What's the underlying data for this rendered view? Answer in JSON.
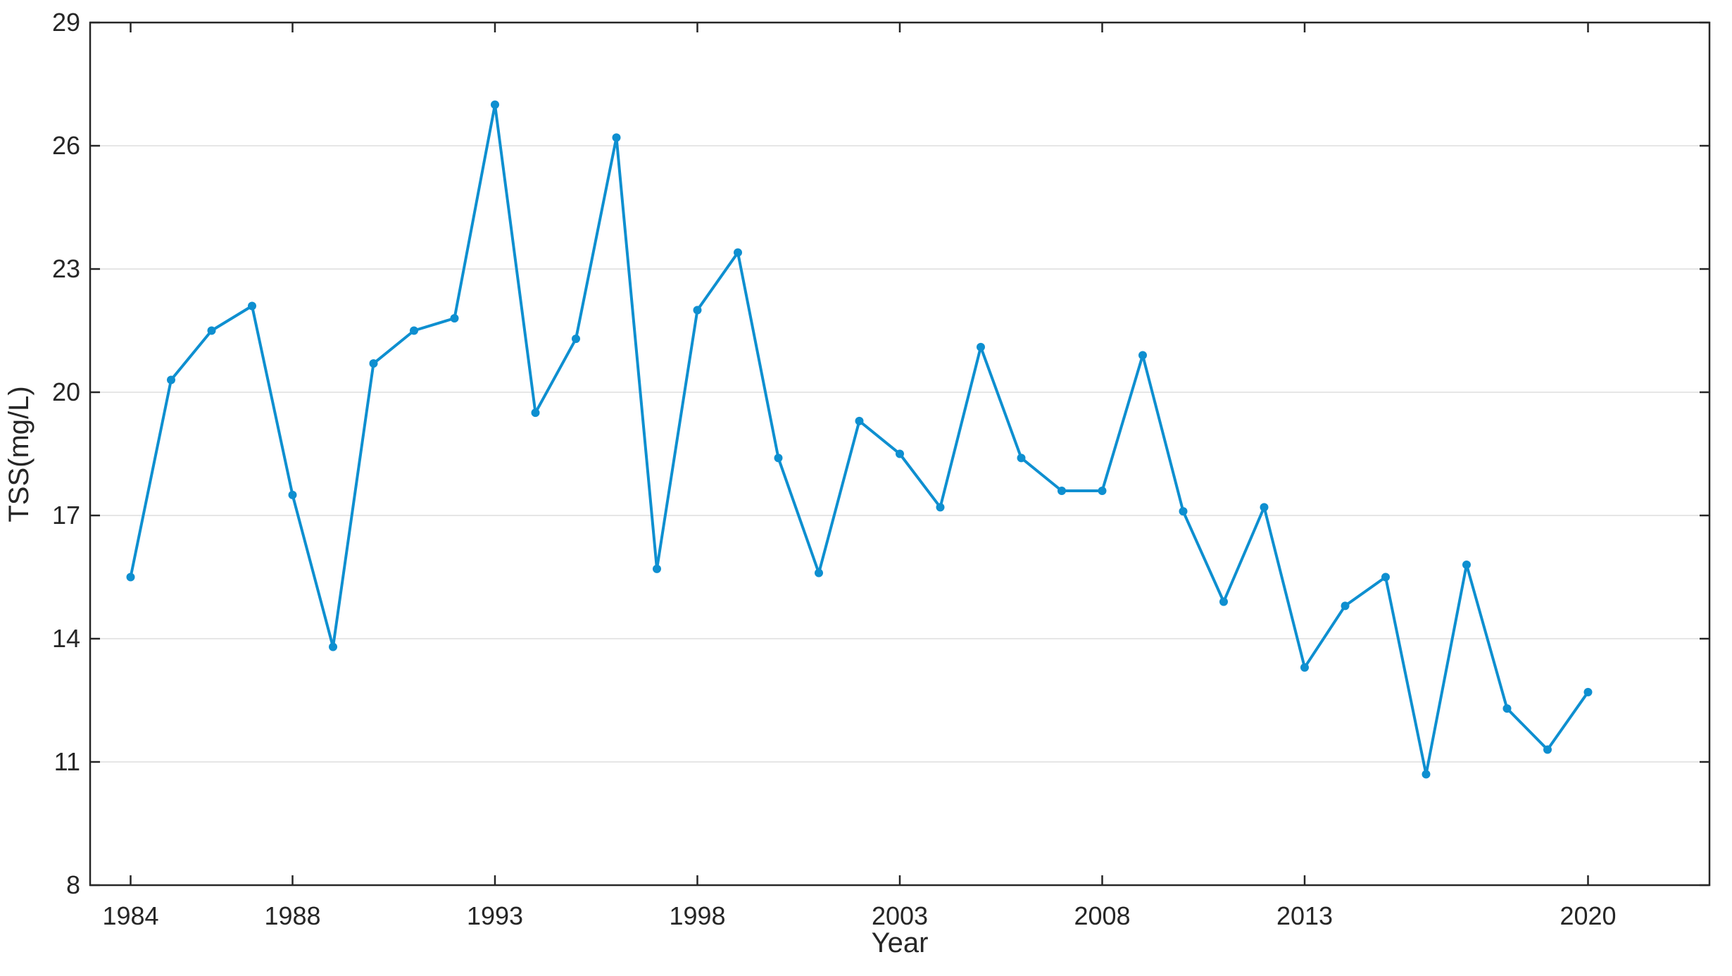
{
  "chart_data": {
    "type": "line",
    "xlabel": "Year",
    "ylabel": "TSS(mg/L)",
    "xlim": [
      1983,
      2023
    ],
    "ylim": [
      8,
      29
    ],
    "xticks": [
      1984,
      1988,
      1993,
      1998,
      2003,
      2008,
      2013,
      2020
    ],
    "yticks": [
      8,
      11,
      14,
      17,
      20,
      23,
      26,
      29
    ],
    "grid": "horizontal",
    "color": "#0e8fd0",
    "series": [
      {
        "x": [
          1984,
          1985,
          1986,
          1987,
          1988,
          1989,
          1990,
          1991,
          1992,
          1993,
          1994,
          1995,
          1996,
          1997,
          1998,
          1999,
          2000,
          2001,
          2002,
          2003,
          2004,
          2005,
          2006,
          2007,
          2008,
          2009,
          2010,
          2011,
          2012,
          2013,
          2014,
          2015,
          2016,
          2017,
          2018,
          2019,
          2020
        ],
        "values": [
          15.5,
          20.3,
          21.5,
          22.1,
          17.5,
          13.8,
          20.7,
          21.5,
          21.8,
          27.0,
          19.5,
          21.3,
          26.2,
          15.7,
          22.0,
          23.4,
          18.4,
          15.6,
          19.3,
          18.5,
          17.2,
          21.1,
          18.4,
          17.6,
          17.6,
          20.9,
          17.1,
          14.9,
          17.2,
          13.3,
          14.8,
          15.5,
          10.7,
          15.8,
          12.3,
          11.3,
          12.7
        ]
      }
    ]
  }
}
